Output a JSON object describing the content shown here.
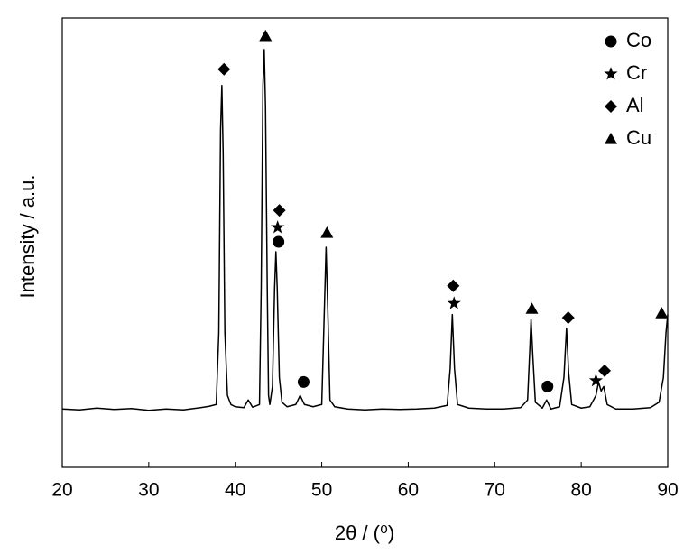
{
  "chart_data": {
    "type": "line",
    "xlabel": "2θ / (⁰)",
    "ylabel": "Intensity / a.u.",
    "color": "#000000",
    "x": [
      20,
      22,
      24,
      26,
      28,
      30,
      32,
      34,
      36,
      37,
      37.8,
      38.1,
      38.3,
      38.45,
      38.6,
      38.8,
      39.1,
      39.5,
      40,
      41,
      41.5,
      42,
      42.8,
      43.0,
      43.2,
      43.35,
      43.5,
      43.7,
      43.85,
      44.0,
      44.3,
      44.55,
      44.7,
      44.85,
      45.1,
      45.4,
      46,
      47,
      47.5,
      48,
      49,
      50,
      50.3,
      50.5,
      50.7,
      50.95,
      51.5,
      53,
      55,
      57,
      59,
      61,
      63,
      64.5,
      64.85,
      65.1,
      65.35,
      65.7,
      67,
      69,
      71,
      73,
      73.8,
      74.05,
      74.2,
      74.4,
      74.7,
      75.5,
      76,
      76.5,
      77.5,
      78.0,
      78.3,
      78.55,
      78.9,
      80,
      81,
      81.7,
      82.0,
      82.3,
      82.6,
      83,
      84,
      86,
      88,
      89,
      89.5,
      89.8,
      90
    ],
    "values": [
      13,
      12.8,
      13.2,
      12.9,
      13.1,
      12.7,
      13.0,
      12.8,
      13.3,
      13.6,
      14,
      30,
      75,
      85,
      70,
      30,
      16,
      14,
      13.5,
      13.3,
      15,
      13.4,
      14,
      40,
      85,
      93,
      80,
      40,
      16,
      14,
      18,
      40,
      48,
      40,
      20,
      14.5,
      13.5,
      14,
      16,
      14,
      13.5,
      14,
      35,
      49,
      35,
      15,
      13.5,
      13,
      12.8,
      13,
      12.9,
      13,
      13.2,
      13.8,
      22,
      34,
      22,
      14,
      13.2,
      13,
      13,
      13.3,
      15,
      26,
      33,
      25,
      14.5,
      13.2,
      15,
      13,
      13.5,
      20,
      31,
      21,
      14,
      13.2,
      13.5,
      16,
      19,
      17,
      18,
      14,
      13,
      13,
      13.3,
      14.5,
      20,
      30,
      34
    ],
    "xlim": [
      20,
      90
    ],
    "ylim": [
      0,
      100
    ],
    "xticks": [
      20,
      30,
      40,
      50,
      60,
      70,
      80,
      90
    ],
    "legend": "upper right",
    "phases": [
      {
        "name": "Co",
        "marker": "circle",
        "x": [
          45.0,
          47.9,
          76.1
        ],
        "y": [
          50.2,
          19,
          18
        ]
      },
      {
        "name": "Cr",
        "marker": "star",
        "x": [
          44.9,
          65.3,
          81.7
        ],
        "y": [
          53.4,
          36.5,
          19.3
        ]
      },
      {
        "name": "Al",
        "marker": "diamond",
        "x": [
          38.7,
          45.1,
          65.2,
          78.5,
          82.7
        ],
        "y": [
          88.6,
          57.2,
          40.4,
          33.3,
          21.5
        ]
      },
      {
        "name": "Cu",
        "marker": "triangle",
        "x": [
          43.5,
          50.6,
          74.3,
          89.3
        ],
        "y": [
          96,
          52.2,
          35.3,
          34.3
        ]
      }
    ]
  }
}
